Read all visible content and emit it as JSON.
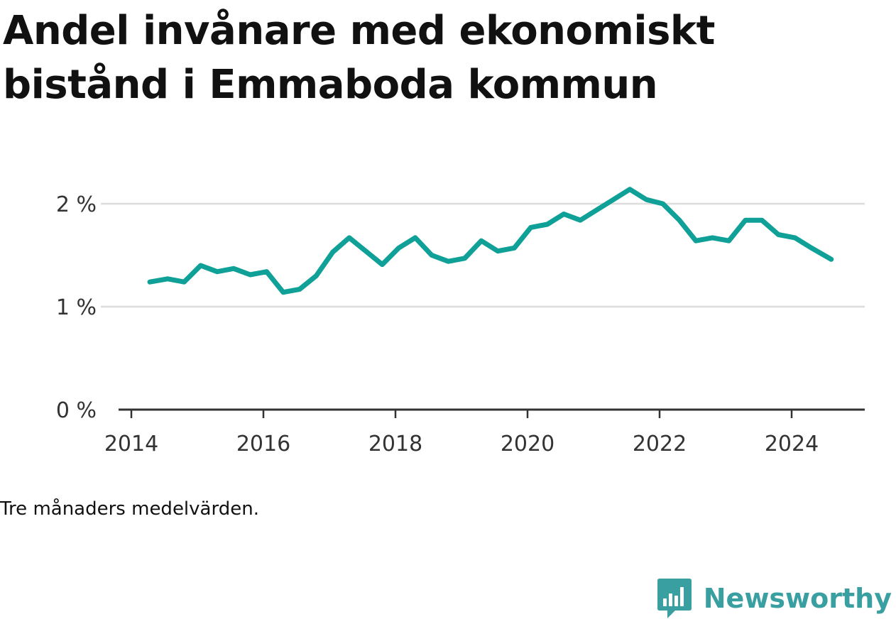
{
  "title": "Andel invånare med ekonomiskt bistånd i Emmaboda kommun",
  "note": "Tre månaders medelvärden.",
  "brand": {
    "name": "Newsworthy",
    "icon": "newsworthy-logo-icon",
    "color": "#3a9fa0"
  },
  "chart_data": {
    "type": "line",
    "title": "Andel invånare med ekonomiskt bistånd i Emmaboda kommun",
    "xlabel": "",
    "ylabel": "",
    "x_ticks": [
      2014,
      2016,
      2018,
      2020,
      2022,
      2024
    ],
    "y_ticks": [
      0,
      1,
      2
    ],
    "y_tick_labels": [
      "0 %",
      "1 %",
      "2 %"
    ],
    "xlim": [
      2014.0,
      2025.2
    ],
    "ylim": [
      0,
      2.3
    ],
    "grid": "horizontal",
    "legend": "none",
    "line_color": "#0fa098",
    "series": [
      {
        "x": [
          2014.28,
          2014.55,
          2014.8,
          2015.05,
          2015.3,
          2015.55,
          2015.8,
          2016.05,
          2016.3,
          2016.55,
          2016.8,
          2017.05,
          2017.3,
          2017.55,
          2017.8,
          2018.05,
          2018.3,
          2018.55,
          2018.8,
          2019.05,
          2019.3,
          2019.55,
          2019.8,
          2020.05,
          2020.3,
          2020.55,
          2020.8,
          2021.05,
          2021.3,
          2021.55,
          2021.8,
          2022.05,
          2022.3,
          2022.55,
          2022.8,
          2023.05,
          2023.3,
          2023.55,
          2023.8,
          2024.05,
          2024.3,
          2024.6
        ],
        "values": [
          1.24,
          1.27,
          1.24,
          1.4,
          1.34,
          1.37,
          1.31,
          1.34,
          1.14,
          1.17,
          1.3,
          1.53,
          1.67,
          1.54,
          1.41,
          1.57,
          1.67,
          1.5,
          1.44,
          1.47,
          1.64,
          1.54,
          1.57,
          1.77,
          1.8,
          1.9,
          1.84,
          1.94,
          2.04,
          2.14,
          2.04,
          2.0,
          1.84,
          1.64,
          1.67,
          1.64,
          1.84,
          1.84,
          1.7,
          1.67,
          1.57,
          1.46
        ]
      }
    ]
  }
}
